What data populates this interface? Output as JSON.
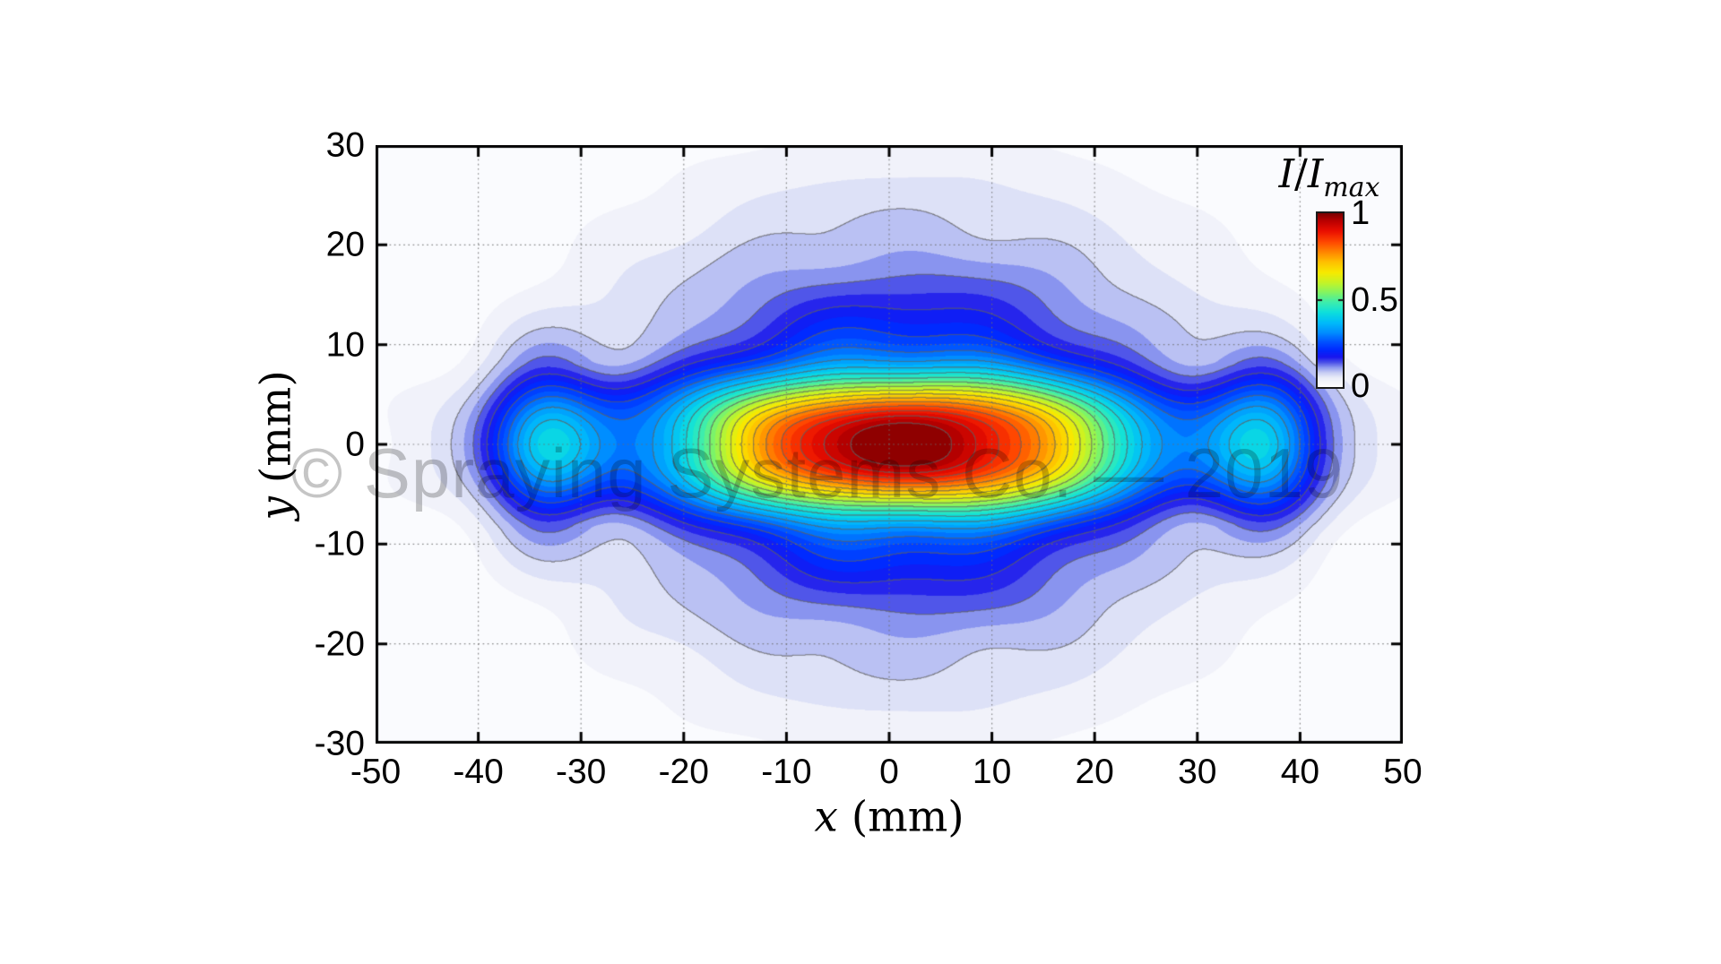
{
  "watermark": {
    "text": "© Spraying Systems Co. — 2019",
    "color": "#9a9a9a"
  },
  "chart_data": {
    "type": "filled_contour",
    "description": "Filled contour map (jet-style colormap fading to white at zero) of normalized intensity I/Imax over the x-y plane, showing an elongated elliptical spray/light-intensity footprint with a red peak at the center and secondary cyan side lobes near x = ±35 mm, overlaid with thin gray contour lines and a dotted grid.",
    "xlabel": {
      "var": "x",
      "unit": "(mm)"
    },
    "ylabel": {
      "var": "y",
      "unit": "(mm)"
    },
    "x_range": [
      -50,
      50
    ],
    "y_range": [
      -30,
      30
    ],
    "x_ticks": [
      {
        "value": -50,
        "label": "-50"
      },
      {
        "value": -40,
        "label": "-40"
      },
      {
        "value": -30,
        "label": "-30"
      },
      {
        "value": -20,
        "label": "-20"
      },
      {
        "value": -10,
        "label": "-10"
      },
      {
        "value": 0,
        "label": "0"
      },
      {
        "value": 10,
        "label": "10"
      },
      {
        "value": 20,
        "label": "20"
      },
      {
        "value": 30,
        "label": "30"
      },
      {
        "value": 40,
        "label": "40"
      },
      {
        "value": 50,
        "label": "50"
      }
    ],
    "y_ticks": [
      {
        "value": 30,
        "label": "30"
      },
      {
        "value": 20,
        "label": "20"
      },
      {
        "value": 10,
        "label": "10"
      },
      {
        "value": 0,
        "label": "0"
      },
      {
        "value": -10,
        "label": "-10"
      },
      {
        "value": -20,
        "label": "-20"
      },
      {
        "value": -30,
        "label": "-30"
      }
    ],
    "grid": {
      "show": true,
      "style": "dotted",
      "spacing": 10,
      "color": "rgba(110,110,110,0.8)"
    },
    "frame_color": "#000000",
    "contour_line_color": "rgba(95,95,95,0.62)",
    "levels": {
      "fill_step": 0.025,
      "line_first": 0.075,
      "line_step": 0.05
    },
    "colorbar": {
      "title": {
        "num": "I",
        "sep": "/",
        "den": "I",
        "sub": "max"
      },
      "ticks": [
        {
          "value": 1,
          "label": "1"
        },
        {
          "value": 0.5,
          "label": "0.5"
        },
        {
          "value": 0,
          "label": "0"
        }
      ]
    },
    "colormap_stops": [
      [
        0.0,
        "#ffffff"
      ],
      [
        0.05,
        "#eceef9"
      ],
      [
        0.08,
        "#c8cef4"
      ],
      [
        0.11,
        "#8f9af0"
      ],
      [
        0.14,
        "#4a50e8"
      ],
      [
        0.17,
        "#1a16ee"
      ],
      [
        0.21,
        "#0028ff"
      ],
      [
        0.26,
        "#0054ff"
      ],
      [
        0.31,
        "#008cff"
      ],
      [
        0.37,
        "#00bcfa"
      ],
      [
        0.43,
        "#0ee0dc"
      ],
      [
        0.49,
        "#40eeaa"
      ],
      [
        0.54,
        "#7ef467"
      ],
      [
        0.6,
        "#c4f428"
      ],
      [
        0.66,
        "#f8ea00"
      ],
      [
        0.72,
        "#ffc000"
      ],
      [
        0.78,
        "#ff8400"
      ],
      [
        0.84,
        "#ff4400"
      ],
      [
        0.9,
        "#ea0e00"
      ],
      [
        0.96,
        "#b80000"
      ],
      [
        1.0,
        "#7c0000"
      ]
    ],
    "field_model": {
      "note": "Parametric reconstruction of the plotted intensity surface I(x,y), normalized 0..1. Peak ~1 near origin; 0.5 contour at x≈±21, y≈±7; cyan side lobes (~0.4) centered near x≈±35; faint outer halo reaching y≈±28 at x=0 and x≈±47 at y=0.",
      "peak_shift_x": 1.5,
      "core_x": {
        "amp": 0.7,
        "scale": 21,
        "pow": 2.6
      },
      "tail_x": {
        "amp": 0.3,
        "scale": 33,
        "pow": 2.0
      },
      "core_y": {
        "amp": 0.62,
        "scale": 6.2,
        "pow": 2.8
      },
      "tail_y": {
        "amp": 0.38,
        "scale": 16,
        "pow": 1.7
      },
      "lobes": {
        "amp": 0.3,
        "center": 35,
        "sx": 5.5,
        "sy": 7.6,
        "py": 1.9
      },
      "dome": {
        "amp": 0.12,
        "sx": 36,
        "sy": 28,
        "pow": 1.8
      },
      "ripple": [
        {
          "amp": 0.018,
          "kx": 0.42,
          "px": 0.8,
          "ky": 0.3
        },
        {
          "amp": 0.014,
          "kx": 0.2,
          "px": 2.1,
          "ky": 0.55
        }
      ],
      "ripple_env": {
        "sx": 40,
        "sy": 20
      }
    }
  }
}
